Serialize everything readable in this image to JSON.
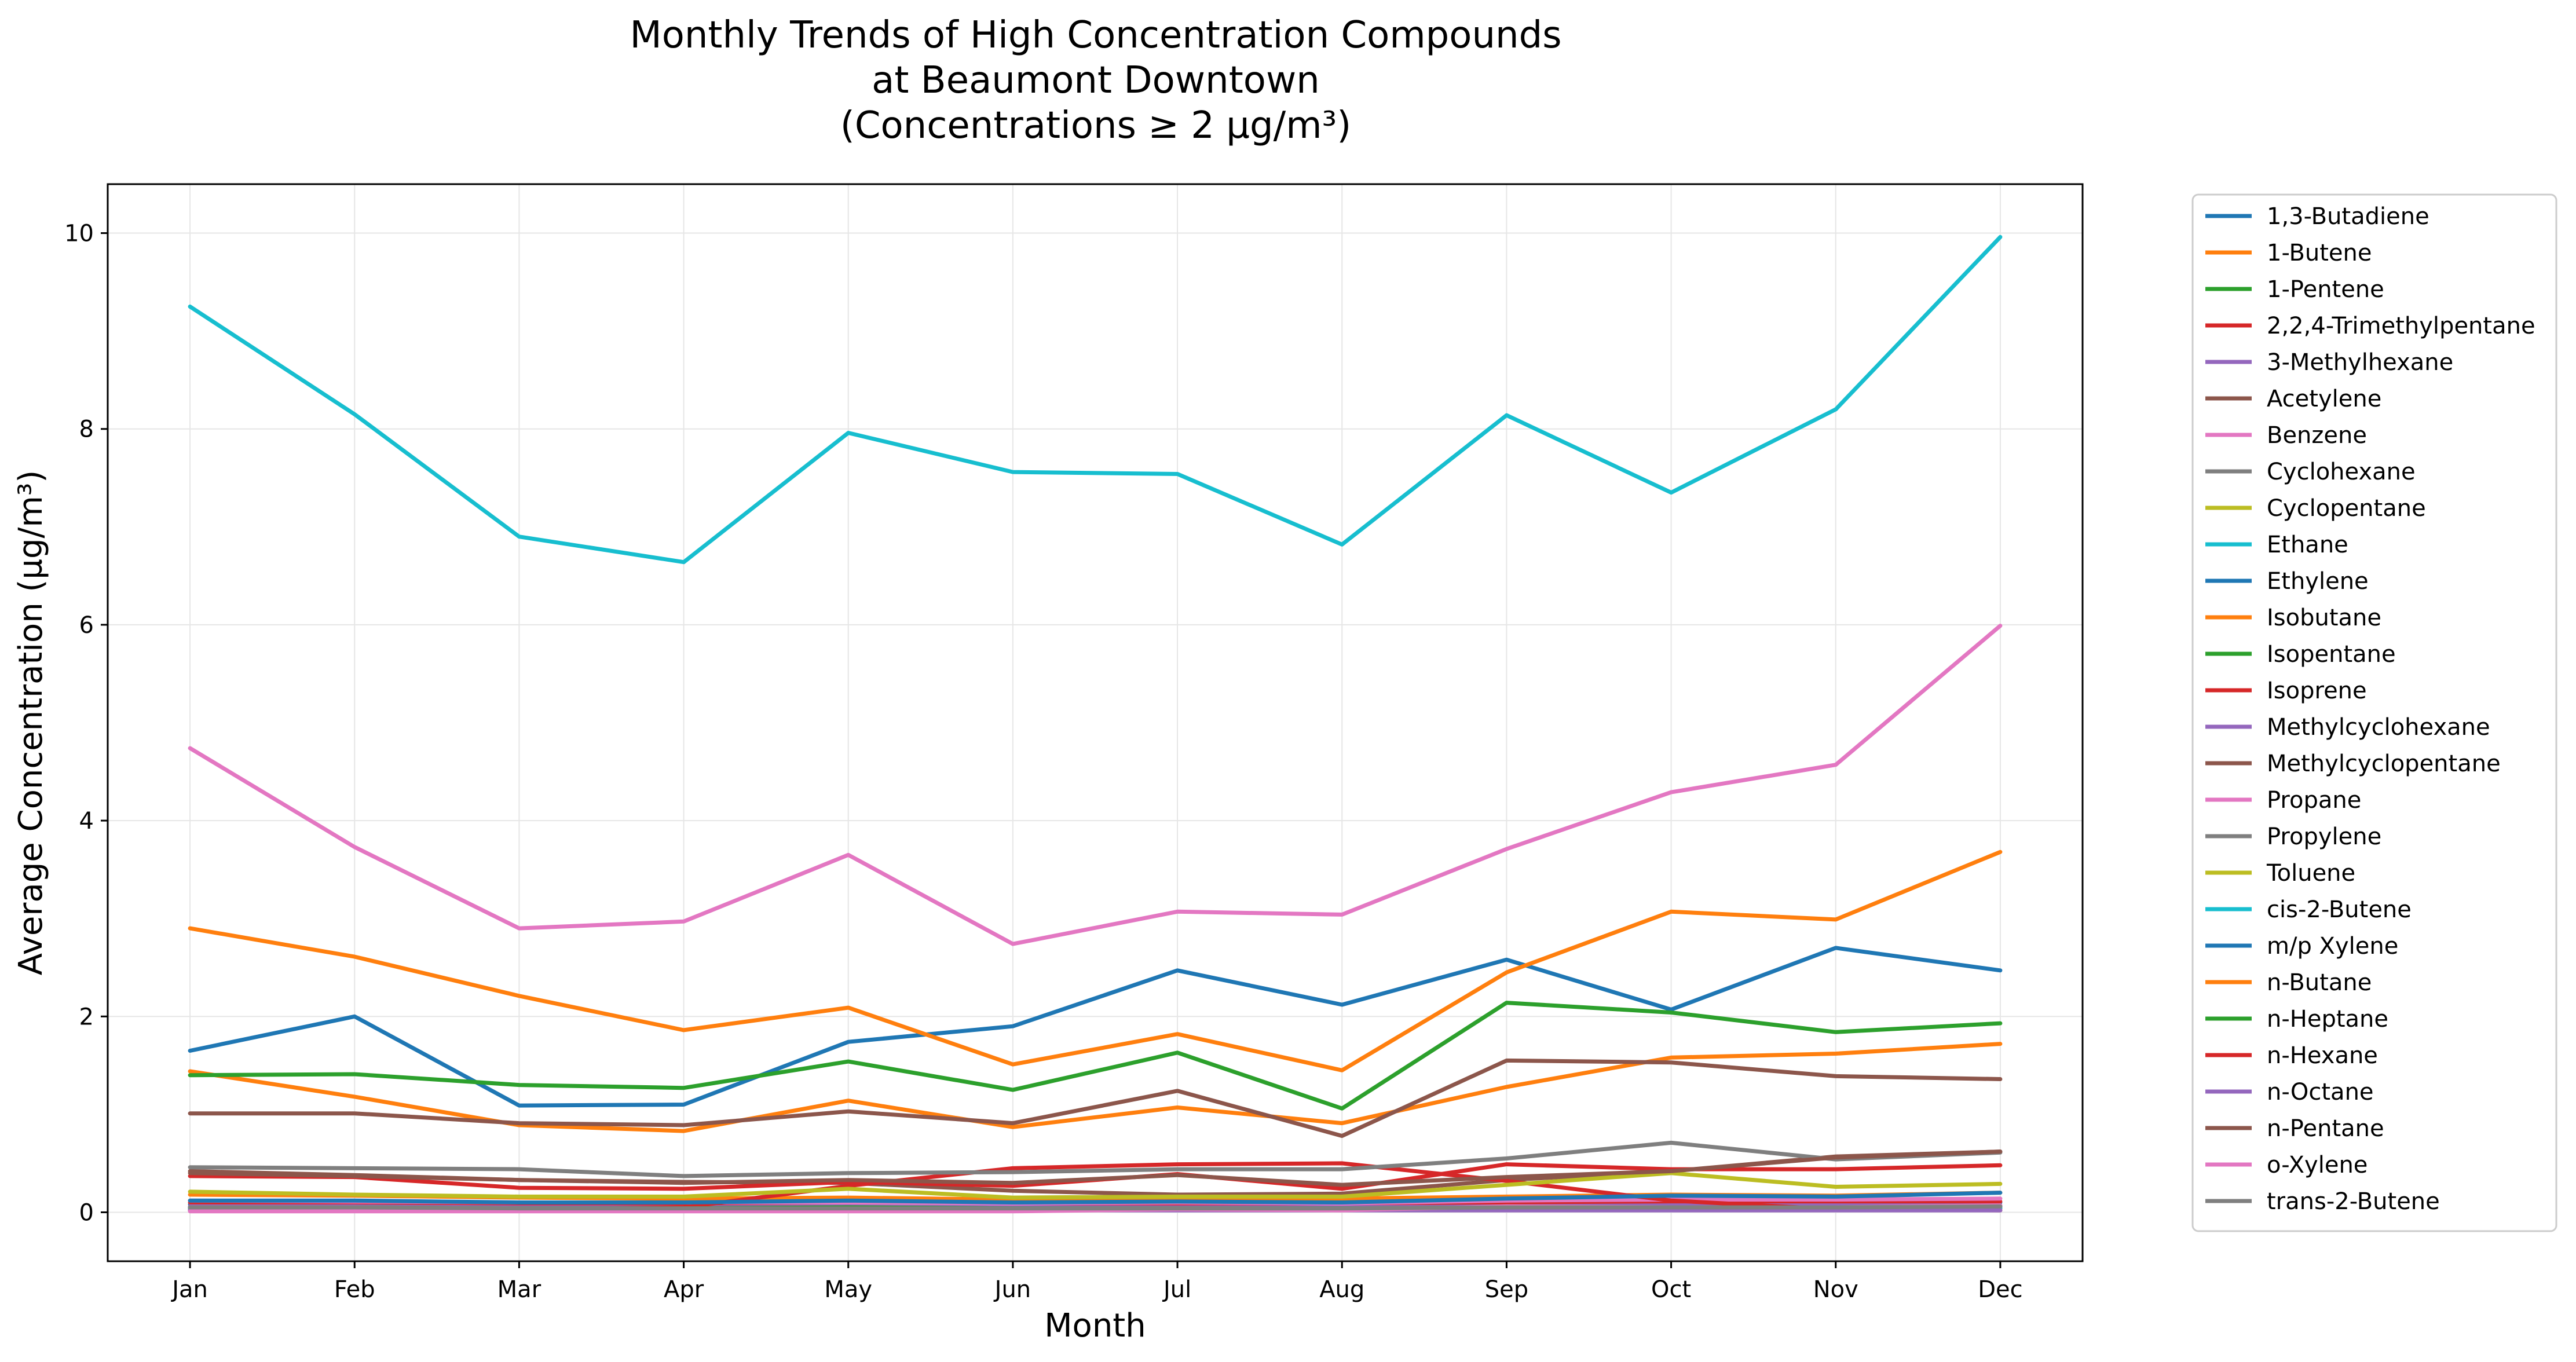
{
  "chart_data": {
    "type": "line",
    "title": "Monthly Trends of High Concentration Compounds\nat Beaumont Downtown\n(Concentrations ≥ 2 µg/m³)",
    "xlabel": "Month",
    "ylabel": "Average Concentration (µg/m³)",
    "ylim": [
      -0.5,
      10.5
    ],
    "yticks": [
      0,
      2,
      4,
      6,
      8,
      10
    ],
    "grid": true,
    "legend_position": "outside-right",
    "categories": [
      "Jan",
      "Feb",
      "Mar",
      "Apr",
      "May",
      "Jun",
      "Jul",
      "Aug",
      "Sep",
      "Oct",
      "Nov",
      "Dec"
    ],
    "series": [
      {
        "name": "1,3-Butadiene",
        "color": "#1f77b4",
        "values": [
          0.08,
          0.07,
          0.06,
          0.06,
          0.06,
          0.05,
          0.06,
          0.06,
          0.08,
          0.09,
          0.09,
          0.1
        ]
      },
      {
        "name": "1-Butene",
        "color": "#ff7f0e",
        "values": [
          0.18,
          0.17,
          0.15,
          0.14,
          0.15,
          0.13,
          0.14,
          0.14,
          0.16,
          0.18,
          0.17,
          0.2
        ]
      },
      {
        "name": "1-Pentene",
        "color": "#2ca02c",
        "values": [
          0.04,
          0.04,
          0.03,
          0.03,
          0.03,
          0.03,
          0.03,
          0.03,
          0.04,
          0.04,
          0.03,
          0.04
        ]
      },
      {
        "name": "2,2,4-Trimethylpentane",
        "color": "#d62728",
        "values": [
          0.1,
          0.09,
          0.08,
          0.08,
          0.09,
          0.08,
          0.08,
          0.08,
          0.1,
          0.11,
          0.1,
          0.11
        ]
      },
      {
        "name": "3-Methylhexane",
        "color": "#9467bd",
        "values": [
          0.06,
          0.06,
          0.05,
          0.05,
          0.06,
          0.05,
          0.05,
          0.05,
          0.06,
          0.07,
          0.07,
          0.07
        ]
      },
      {
        "name": "Acetylene",
        "color": "#8c564b",
        "values": [
          0.42,
          0.38,
          0.33,
          0.31,
          0.3,
          0.22,
          0.18,
          0.19,
          0.33,
          0.42,
          0.57,
          0.62
        ]
      },
      {
        "name": "Benzene",
        "color": "#e377c2",
        "values": [
          0.12,
          0.11,
          0.1,
          0.1,
          0.1,
          0.09,
          0.1,
          0.09,
          0.12,
          0.13,
          0.13,
          0.14
        ]
      },
      {
        "name": "Cyclohexane",
        "color": "#7f7f7f",
        "values": [
          0.05,
          0.05,
          0.04,
          0.04,
          0.05,
          0.04,
          0.04,
          0.04,
          0.05,
          0.05,
          0.05,
          0.06
        ]
      },
      {
        "name": "Cyclopentane",
        "color": "#bcbd22",
        "values": [
          0.03,
          0.03,
          0.03,
          0.03,
          0.03,
          0.03,
          0.03,
          0.03,
          0.03,
          0.04,
          0.04,
          0.04
        ]
      },
      {
        "name": "Ethane",
        "color": "#17becf",
        "values": [
          9.25,
          8.15,
          6.9,
          6.64,
          7.96,
          7.56,
          7.54,
          6.82,
          8.14,
          7.35,
          8.2,
          9.96
        ]
      },
      {
        "name": "Ethylene",
        "color": "#1f77b4",
        "values": [
          1.65,
          2.0,
          1.09,
          1.1,
          1.74,
          1.9,
          2.47,
          2.12,
          2.58,
          2.07,
          2.7,
          2.47
        ]
      },
      {
        "name": "Isobutane",
        "color": "#ff7f0e",
        "values": [
          1.44,
          1.18,
          0.89,
          0.83,
          1.14,
          0.87,
          1.07,
          0.91,
          1.28,
          1.58,
          1.62,
          1.72
        ]
      },
      {
        "name": "Isopentane",
        "color": "#2ca02c",
        "values": [
          1.4,
          1.41,
          1.3,
          1.27,
          1.54,
          1.25,
          1.63,
          1.06,
          2.14,
          2.04,
          1.84,
          1.93
        ]
      },
      {
        "name": "Isoprene",
        "color": "#d62728",
        "values": [
          0.02,
          0.02,
          0.03,
          0.05,
          0.27,
          0.45,
          0.49,
          0.5,
          0.32,
          0.12,
          0.03,
          0.02
        ]
      },
      {
        "name": "Methylcyclohexane",
        "color": "#9467bd",
        "values": [
          0.04,
          0.04,
          0.03,
          0.03,
          0.04,
          0.03,
          0.03,
          0.03,
          0.04,
          0.04,
          0.04,
          0.04
        ]
      },
      {
        "name": "Methylcyclopentane",
        "color": "#8c564b",
        "values": [
          1.01,
          1.01,
          0.91,
          0.89,
          1.03,
          0.91,
          1.24,
          0.78,
          1.55,
          1.53,
          1.39,
          1.36
        ]
      },
      {
        "name": "Propane",
        "color": "#e377c2",
        "values": [
          4.74,
          3.73,
          2.9,
          2.97,
          3.65,
          2.74,
          3.07,
          3.04,
          3.71,
          4.29,
          4.57,
          5.99
        ]
      },
      {
        "name": "Propylene",
        "color": "#7f7f7f",
        "values": [
          0.46,
          0.45,
          0.44,
          0.37,
          0.4,
          0.41,
          0.44,
          0.44,
          0.55,
          0.71,
          0.54,
          0.61
        ]
      },
      {
        "name": "Toluene",
        "color": "#bcbd22",
        "values": [
          0.21,
          0.18,
          0.16,
          0.16,
          0.24,
          0.15,
          0.16,
          0.16,
          0.28,
          0.4,
          0.26,
          0.29
        ]
      },
      {
        "name": "cis-2-Butene",
        "color": "#17becf",
        "values": [
          0.04,
          0.04,
          0.03,
          0.03,
          0.03,
          0.03,
          0.03,
          0.03,
          0.04,
          0.04,
          0.04,
          0.05
        ]
      },
      {
        "name": "m/p Xylene",
        "color": "#1f77b4",
        "values": [
          0.12,
          0.12,
          0.1,
          0.1,
          0.12,
          0.1,
          0.11,
          0.1,
          0.14,
          0.17,
          0.16,
          0.2
        ]
      },
      {
        "name": "n-Butane",
        "color": "#ff7f0e",
        "values": [
          2.9,
          2.61,
          2.21,
          1.86,
          2.09,
          1.51,
          1.82,
          1.45,
          2.45,
          3.07,
          2.99,
          3.68
        ]
      },
      {
        "name": "n-Heptane",
        "color": "#2ca02c",
        "values": [
          0.05,
          0.05,
          0.04,
          0.04,
          0.05,
          0.04,
          0.04,
          0.04,
          0.05,
          0.05,
          0.05,
          0.06
        ]
      },
      {
        "name": "n-Hexane",
        "color": "#d62728",
        "values": [
          0.37,
          0.36,
          0.25,
          0.24,
          0.31,
          0.27,
          0.39,
          0.24,
          0.49,
          0.44,
          0.44,
          0.48
        ]
      },
      {
        "name": "n-Octane",
        "color": "#9467bd",
        "values": [
          0.02,
          0.02,
          0.02,
          0.02,
          0.02,
          0.02,
          0.02,
          0.02,
          0.02,
          0.02,
          0.02,
          0.02
        ]
      },
      {
        "name": "n-Pentane",
        "color": "#8c564b",
        "values": [
          0.4,
          0.37,
          0.33,
          0.3,
          0.33,
          0.3,
          0.38,
          0.28,
          0.36,
          0.42,
          0.56,
          0.62
        ]
      },
      {
        "name": "o-Xylene",
        "color": "#e377c2",
        "values": [
          0.01,
          0.01,
          0.01,
          0.01,
          0.01,
          0.01,
          0.03,
          0.02,
          0.06,
          0.05,
          0.05,
          0.07
        ]
      },
      {
        "name": "trans-2-Butene",
        "color": "#7f7f7f",
        "values": [
          0.05,
          0.05,
          0.04,
          0.04,
          0.04,
          0.04,
          0.04,
          0.04,
          0.05,
          0.05,
          0.05,
          0.06
        ]
      }
    ]
  }
}
